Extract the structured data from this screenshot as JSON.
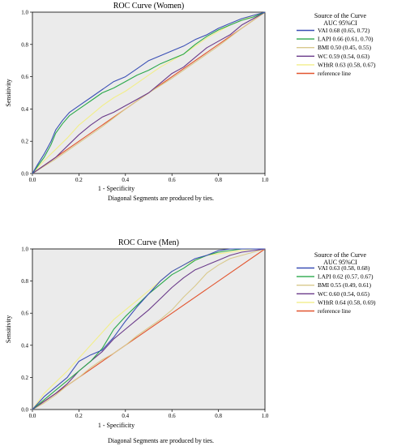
{
  "figure": {
    "footnote": "Diagonal Segments are produced by ties."
  },
  "chart_data": [
    {
      "type": "line",
      "title": "ROC Curve (Women)",
      "xlabel": "1 - Specificity",
      "ylabel": "Sensitivity",
      "xlim": [
        0,
        1
      ],
      "ylim": [
        0,
        1
      ],
      "xticks": [
        "0.0",
        "0.2",
        "0.4",
        "0.6",
        "0.8",
        "1.0"
      ],
      "yticks": [
        "0.0",
        "0.2",
        "0.4",
        "0.6",
        "0.8",
        "1.0"
      ],
      "grid": false,
      "background": "#ebebeb",
      "legend": {
        "title_line1": "Source of the Curve",
        "title_line2": "AUC 95%CI",
        "placement": "right"
      },
      "series": [
        {
          "name": "VAI",
          "auc": "0.68 (0.65, 0.72)",
          "color": "#3a4fb5",
          "x": [
            0,
            0.02,
            0.05,
            0.08,
            0.1,
            0.13,
            0.16,
            0.2,
            0.25,
            0.3,
            0.35,
            0.4,
            0.45,
            0.5,
            0.55,
            0.6,
            0.65,
            0.7,
            0.75,
            0.8,
            0.85,
            0.9,
            0.95,
            1.0
          ],
          "y": [
            0,
            0.05,
            0.12,
            0.2,
            0.27,
            0.33,
            0.38,
            0.42,
            0.47,
            0.52,
            0.57,
            0.6,
            0.65,
            0.7,
            0.73,
            0.76,
            0.79,
            0.83,
            0.86,
            0.9,
            0.93,
            0.96,
            0.98,
            1.0
          ]
        },
        {
          "name": "LAPI",
          "auc": "0.66 (0.61, 0.70)",
          "color": "#2aa84a",
          "x": [
            0,
            0.02,
            0.05,
            0.08,
            0.1,
            0.13,
            0.16,
            0.2,
            0.25,
            0.3,
            0.35,
            0.4,
            0.45,
            0.5,
            0.55,
            0.6,
            0.65,
            0.7,
            0.75,
            0.8,
            0.85,
            0.9,
            0.95,
            1.0
          ],
          "y": [
            0,
            0.04,
            0.1,
            0.18,
            0.25,
            0.31,
            0.36,
            0.4,
            0.45,
            0.5,
            0.53,
            0.57,
            0.61,
            0.64,
            0.68,
            0.71,
            0.74,
            0.8,
            0.85,
            0.89,
            0.92,
            0.95,
            0.97,
            1.0
          ]
        },
        {
          "name": "BMI",
          "auc": "0.50 (0.45, 0.55)",
          "color": "#d9c98c",
          "x": [
            0,
            0.1,
            0.2,
            0.3,
            0.4,
            0.5,
            0.6,
            0.7,
            0.8,
            0.9,
            1.0
          ],
          "y": [
            0,
            0.09,
            0.19,
            0.29,
            0.4,
            0.5,
            0.59,
            0.69,
            0.79,
            0.9,
            1.0
          ]
        },
        {
          "name": "WC",
          "auc": "0.59 (0.54, 0.63)",
          "color": "#6a3a8a",
          "x": [
            0,
            0.05,
            0.1,
            0.15,
            0.2,
            0.25,
            0.3,
            0.35,
            0.4,
            0.45,
            0.5,
            0.55,
            0.6,
            0.65,
            0.7,
            0.75,
            0.8,
            0.85,
            0.9,
            0.95,
            1.0
          ],
          "y": [
            0,
            0.05,
            0.1,
            0.17,
            0.24,
            0.3,
            0.35,
            0.38,
            0.42,
            0.46,
            0.5,
            0.56,
            0.62,
            0.66,
            0.72,
            0.78,
            0.82,
            0.86,
            0.92,
            0.96,
            1.0
          ]
        },
        {
          "name": "WHtR",
          "auc": "0.63 (0.58, 0.67)",
          "color": "#f2ee8a",
          "x": [
            0,
            0.05,
            0.1,
            0.15,
            0.2,
            0.25,
            0.3,
            0.35,
            0.4,
            0.45,
            0.5,
            0.55,
            0.6,
            0.65,
            0.7,
            0.75,
            0.8,
            0.85,
            0.9,
            0.95,
            1.0
          ],
          "y": [
            0,
            0.08,
            0.15,
            0.22,
            0.3,
            0.36,
            0.42,
            0.47,
            0.51,
            0.56,
            0.61,
            0.66,
            0.7,
            0.74,
            0.79,
            0.84,
            0.88,
            0.92,
            0.95,
            0.98,
            1.0
          ]
        },
        {
          "name": "reference line",
          "auc": "",
          "color": "#e2552f",
          "x": [
            0,
            1
          ],
          "y": [
            0,
            1
          ]
        }
      ]
    },
    {
      "type": "line",
      "title": "ROC Curve (Men)",
      "xlabel": "1 - Specificity",
      "ylabel": "Sensitivity",
      "xlim": [
        0,
        1
      ],
      "ylim": [
        0,
        1
      ],
      "xticks": [
        "0.0",
        "0.2",
        "0.4",
        "0.6",
        "0.8",
        "1.0"
      ],
      "yticks": [
        "0.0",
        "0.2",
        "0.4",
        "0.6",
        "0.8",
        "1.0"
      ],
      "grid": false,
      "background": "#ebebeb",
      "legend": {
        "title_line1": "Source of the Curve",
        "title_line2": "AUC 95%CI",
        "placement": "right"
      },
      "series": [
        {
          "name": "VAI",
          "auc": "0.63 (0.58, 0.68)",
          "color": "#3a4fb5",
          "x": [
            0,
            0.05,
            0.1,
            0.15,
            0.2,
            0.25,
            0.3,
            0.35,
            0.4,
            0.45,
            0.5,
            0.55,
            0.6,
            0.65,
            0.7,
            0.75,
            0.8,
            0.85,
            0.9,
            0.95,
            1.0
          ],
          "y": [
            0,
            0.08,
            0.14,
            0.2,
            0.3,
            0.34,
            0.37,
            0.45,
            0.55,
            0.64,
            0.72,
            0.8,
            0.86,
            0.9,
            0.94,
            0.96,
            0.99,
            1.0,
            1.0,
            1.0,
            1.0
          ]
        },
        {
          "name": "LAPI",
          "auc": "0.62 (0.57, 0.67)",
          "color": "#2aa84a",
          "x": [
            0,
            0.05,
            0.1,
            0.15,
            0.2,
            0.25,
            0.3,
            0.35,
            0.4,
            0.45,
            0.5,
            0.55,
            0.6,
            0.65,
            0.7,
            0.75,
            0.8,
            0.85,
            0.9,
            0.95,
            1.0
          ],
          "y": [
            0,
            0.06,
            0.12,
            0.18,
            0.24,
            0.3,
            0.38,
            0.5,
            0.58,
            0.65,
            0.72,
            0.78,
            0.84,
            0.88,
            0.93,
            0.96,
            0.98,
            0.99,
            1.0,
            1.0,
            1.0
          ]
        },
        {
          "name": "BMI",
          "auc": "0.55 (0.49, 0.61)",
          "color": "#d9c98c",
          "x": [
            0,
            0.05,
            0.1,
            0.15,
            0.2,
            0.25,
            0.3,
            0.35,
            0.4,
            0.45,
            0.5,
            0.55,
            0.6,
            0.65,
            0.7,
            0.75,
            0.8,
            0.85,
            0.9,
            0.95,
            1.0
          ],
          "y": [
            0,
            0.04,
            0.09,
            0.15,
            0.2,
            0.26,
            0.31,
            0.35,
            0.4,
            0.46,
            0.51,
            0.56,
            0.62,
            0.7,
            0.77,
            0.85,
            0.9,
            0.94,
            0.96,
            0.98,
            1.0
          ]
        },
        {
          "name": "WC",
          "auc": "0.60 (0.54, 0.65)",
          "color": "#6a3a8a",
          "x": [
            0,
            0.05,
            0.1,
            0.15,
            0.2,
            0.25,
            0.3,
            0.35,
            0.4,
            0.45,
            0.5,
            0.55,
            0.6,
            0.65,
            0.7,
            0.75,
            0.8,
            0.85,
            0.9,
            0.95,
            1.0
          ],
          "y": [
            0,
            0.05,
            0.1,
            0.16,
            0.24,
            0.3,
            0.36,
            0.44,
            0.5,
            0.56,
            0.62,
            0.69,
            0.76,
            0.82,
            0.87,
            0.9,
            0.93,
            0.96,
            0.98,
            0.99,
            1.0
          ]
        },
        {
          "name": "WHtR",
          "auc": "0.64 (0.58, 0.69)",
          "color": "#f2ee8a",
          "x": [
            0,
            0.05,
            0.1,
            0.15,
            0.2,
            0.25,
            0.3,
            0.35,
            0.4,
            0.45,
            0.5,
            0.55,
            0.6,
            0.65,
            0.7,
            0.75,
            0.8,
            0.85,
            0.9,
            0.95,
            1.0
          ],
          "y": [
            0,
            0.1,
            0.17,
            0.24,
            0.32,
            0.4,
            0.48,
            0.56,
            0.62,
            0.68,
            0.74,
            0.8,
            0.86,
            0.9,
            0.93,
            0.96,
            0.97,
            0.98,
            0.99,
            1.0,
            1.0
          ]
        },
        {
          "name": "reference line",
          "auc": "",
          "color": "#e2552f",
          "x": [
            0,
            1
          ],
          "y": [
            0,
            1
          ]
        }
      ]
    }
  ]
}
